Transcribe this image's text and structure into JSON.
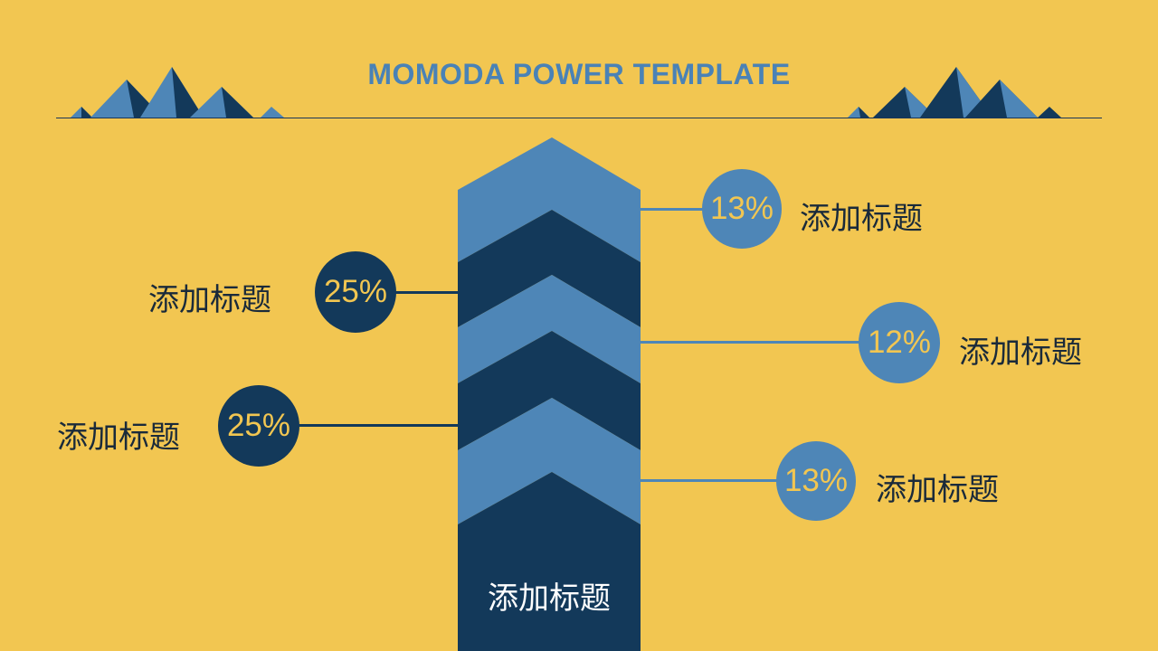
{
  "header": {
    "title": "MOMODA POWER TEMPLATE"
  },
  "center": {
    "label": "添加标题"
  },
  "items": [
    {
      "percent": "13%",
      "label": "添加标题",
      "tone": "light",
      "side": "right"
    },
    {
      "percent": "25%",
      "label": "添加标题",
      "tone": "dark",
      "side": "left"
    },
    {
      "percent": "12%",
      "label": "添加标题",
      "tone": "light",
      "side": "right"
    },
    {
      "percent": "25%",
      "label": "添加标题",
      "tone": "dark",
      "side": "left"
    },
    {
      "percent": "13%",
      "label": "添加标题",
      "tone": "light",
      "side": "right"
    }
  ],
  "colors": {
    "background": "#F2C651",
    "dark_blue": "#13395A",
    "light_blue": "#4E86B7",
    "title": "#4A82B6"
  }
}
